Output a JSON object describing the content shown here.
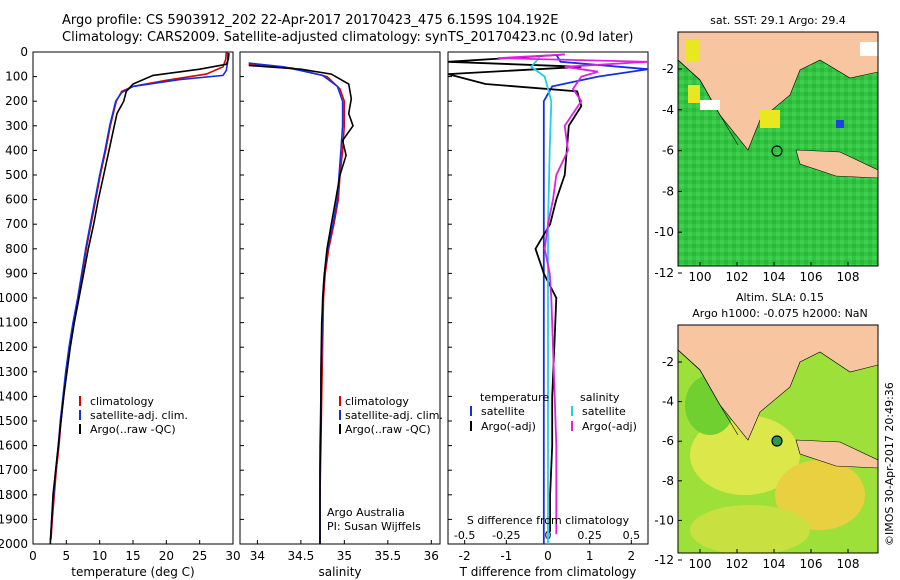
{
  "header": {
    "line1": "Argo profile: CS 5903912_202 22-Apr-2017 20170423_475 6.159S 104.192E",
    "line2": "Climatology: CARS2009. Satellite-adjusted climatology: synTS_20170423.nc (0.9d later)"
  },
  "colors": {
    "climatology": "#e00000",
    "satellite": "#1030e0",
    "argo": "#000000",
    "satellite_s": "#20d0e8",
    "argo_s": "#e020e0",
    "land": "#f7c59f",
    "sst_water": "#30c840",
    "sla_water": "#a8e030",
    "missing": "#ffffff"
  },
  "chart_data": [
    {
      "type": "line",
      "name": "temperature-profile",
      "xlabel": "temperature (deg C)",
      "ylabel": "depth",
      "xlim": [
        0,
        30
      ],
      "ylim": [
        2000,
        0
      ],
      "x_ticks": [
        0,
        5,
        10,
        15,
        20,
        25,
        30
      ],
      "y_ticks": [
        0,
        100,
        200,
        300,
        400,
        500,
        600,
        700,
        800,
        900,
        1000,
        1100,
        1200,
        1300,
        1400,
        1500,
        1600,
        1700,
        1800,
        1900,
        2000
      ],
      "legend": [
        "climatology",
        "satellite-adj. clim.",
        "Argo(..raw -QC)"
      ],
      "series": [
        {
          "name": "climatology",
          "points": [
            [
              29.0,
              0
            ],
            [
              28.9,
              30
            ],
            [
              28.5,
              60
            ],
            [
              26,
              90
            ],
            [
              20,
              115
            ],
            [
              15,
              140
            ],
            [
              13.3,
              160
            ],
            [
              12.5,
              200
            ],
            [
              11.6,
              300
            ],
            [
              10.9,
              400
            ],
            [
              10.1,
              500
            ],
            [
              9.4,
              600
            ],
            [
              8.7,
              700
            ],
            [
              8.0,
              800
            ],
            [
              7.4,
              900
            ],
            [
              6.8,
              1000
            ],
            [
              6.1,
              1100
            ],
            [
              5.5,
              1200
            ],
            [
              5.0,
              1300
            ],
            [
              4.6,
              1400
            ],
            [
              4.2,
              1500
            ],
            [
              3.9,
              1600
            ],
            [
              3.5,
              1700
            ],
            [
              3.2,
              1800
            ],
            [
              2.9,
              1900
            ],
            [
              2.7,
              1980
            ]
          ]
        },
        {
          "name": "satellite-adj. clim.",
          "points": [
            [
              29.2,
              0
            ],
            [
              29.2,
              40
            ],
            [
              29.0,
              75
            ],
            [
              28.5,
              95
            ],
            [
              22,
              112
            ],
            [
              15,
              140
            ],
            [
              13.3,
              165
            ],
            [
              12.4,
              200
            ],
            [
              11.5,
              300
            ],
            [
              10.8,
              400
            ],
            [
              10.0,
              500
            ],
            [
              9.3,
              600
            ],
            [
              8.6,
              700
            ],
            [
              7.9,
              800
            ],
            [
              7.3,
              900
            ],
            [
              6.7,
              1000
            ],
            [
              6.0,
              1100
            ],
            [
              5.4,
              1200
            ],
            [
              4.9,
              1300
            ],
            [
              4.5,
              1400
            ],
            [
              4.1,
              1500
            ],
            [
              3.8,
              1600
            ],
            [
              3.4,
              1700
            ],
            [
              3.1,
              1800
            ],
            [
              2.8,
              1900
            ],
            [
              2.6,
              1990
            ]
          ]
        },
        {
          "name": "Argo(..raw -QC)",
          "points": [
            [
              29.4,
              5
            ],
            [
              29.3,
              30
            ],
            [
              29.0,
              50
            ],
            [
              25,
              70
            ],
            [
              18,
              95
            ],
            [
              15,
              130
            ],
            [
              14.0,
              160
            ],
            [
              13.6,
              200
            ],
            [
              12.6,
              250
            ],
            [
              12.2,
              300
            ],
            [
              11.4,
              400
            ],
            [
              10.6,
              500
            ],
            [
              9.8,
              600
            ],
            [
              9.1,
              700
            ],
            [
              8.3,
              800
            ],
            [
              7.6,
              900
            ],
            [
              6.9,
              1000
            ],
            [
              6.2,
              1100
            ],
            [
              5.6,
              1200
            ],
            [
              5.1,
              1300
            ],
            [
              4.6,
              1400
            ],
            [
              4.2,
              1500
            ],
            [
              3.8,
              1600
            ],
            [
              3.4,
              1700
            ],
            [
              3.0,
              1800
            ],
            [
              2.8,
              1900
            ],
            [
              2.6,
              2000
            ]
          ]
        }
      ]
    },
    {
      "type": "line",
      "name": "salinity-profile",
      "xlabel": "salinity",
      "xlim": [
        33.8,
        36.1
      ],
      "ylim": [
        2000,
        0
      ],
      "x_ticks": [
        34,
        34.5,
        35,
        35.5,
        36
      ],
      "legend": [
        "climatology",
        "satellite-adj. clim.",
        "Argo(..raw -QC)"
      ],
      "annotation": {
        "line1": "Argo Australia",
        "line2": "PI: Susan Wijffels"
      },
      "series": [
        {
          "name": "climatology",
          "points": [
            [
              33.9,
              50
            ],
            [
              34.4,
              65
            ],
            [
              34.8,
              100
            ],
            [
              34.95,
              150
            ],
            [
              35.0,
              200
            ],
            [
              35.0,
              300
            ],
            [
              34.98,
              400
            ],
            [
              34.95,
              500
            ],
            [
              34.93,
              600
            ],
            [
              34.88,
              700
            ],
            [
              34.82,
              800
            ],
            [
              34.78,
              900
            ],
            [
              34.76,
              1000
            ],
            [
              34.75,
              1200
            ],
            [
              34.74,
              1400
            ],
            [
              34.73,
              1600
            ],
            [
              34.72,
              1800
            ],
            [
              34.72,
              2000
            ]
          ]
        },
        {
          "name": "satellite-adj. clim.",
          "points": [
            [
              33.9,
              45
            ],
            [
              34.3,
              60
            ],
            [
              34.75,
              95
            ],
            [
              34.92,
              140
            ],
            [
              34.98,
              200
            ],
            [
              34.98,
              300
            ],
            [
              34.96,
              400
            ],
            [
              34.94,
              500
            ],
            [
              34.92,
              600
            ],
            [
              34.87,
              700
            ],
            [
              34.81,
              800
            ],
            [
              34.77,
              900
            ],
            [
              34.75,
              1000
            ],
            [
              34.74,
              1200
            ],
            [
              34.73,
              1400
            ],
            [
              34.72,
              1600
            ],
            [
              34.72,
              1800
            ],
            [
              34.72,
              2000
            ]
          ]
        },
        {
          "name": "Argo(..raw -QC)",
          "points": [
            [
              33.9,
              55
            ],
            [
              34.5,
              70
            ],
            [
              34.85,
              90
            ],
            [
              35.05,
              130
            ],
            [
              35.08,
              190
            ],
            [
              35.05,
              250
            ],
            [
              35.1,
              300
            ],
            [
              34.98,
              360
            ],
            [
              35.02,
              420
            ],
            [
              34.95,
              500
            ],
            [
              34.9,
              600
            ],
            [
              34.85,
              700
            ],
            [
              34.8,
              800
            ],
            [
              34.78,
              870
            ],
            [
              34.76,
              950
            ],
            [
              34.74,
              1100
            ],
            [
              34.73,
              1300
            ],
            [
              34.73,
              1500
            ],
            [
              34.72,
              1700
            ],
            [
              34.72,
              1900
            ],
            [
              34.72,
              2000
            ]
          ]
        }
      ]
    },
    {
      "type": "line",
      "name": "difference-profile",
      "xlabel": "T difference from climatology",
      "xlabel_top": "S difference from climatology",
      "xlim": [
        -2.4,
        2.4
      ],
      "ylim": [
        2000,
        0
      ],
      "x_ticks": [
        -2,
        -1.5,
        -1,
        -0.5,
        0,
        0.5,
        1,
        1.5,
        2
      ],
      "x_tick_labels": [
        "-2",
        "-1.5",
        "-1",
        "-0.5",
        "0",
        "0.5",
        "1",
        "1.5",
        "2"
      ],
      "s_ticks": [
        -0.5,
        -0.25,
        0,
        0.25,
        0.5
      ],
      "s_tick_labels": [
        "-0.5",
        "-0.25",
        "0",
        "0.25",
        "0.5"
      ],
      "legend_left": {
        "heading": "temperature",
        "items": [
          "satellite",
          "Argo(-adj)"
        ]
      },
      "legend_right": {
        "heading": "salinity",
        "items": [
          "satellite",
          "Argo(-adj)"
        ]
      },
      "series": [
        {
          "name": "T satellite",
          "points": [
            [
              0.2,
              10
            ],
            [
              0.3,
              40
            ],
            [
              2.4,
              70
            ],
            [
              1.2,
              100
            ],
            [
              0.1,
              140
            ],
            [
              -0.1,
              200
            ],
            [
              -0.1,
              400
            ],
            [
              -0.1,
              700
            ],
            [
              -0.1,
              1000
            ],
            [
              -0.1,
              1400
            ],
            [
              -0.1,
              1800
            ],
            [
              -0.1,
              2000
            ]
          ]
        },
        {
          "name": "T Argo(-adj)",
          "points": [
            [
              0.4,
              10
            ],
            [
              -2.4,
              40
            ],
            [
              0.8,
              60
            ],
            [
              -2.4,
              90
            ],
            [
              -1.5,
              130
            ],
            [
              0.7,
              160
            ],
            [
              0.8,
              220
            ],
            [
              0.5,
              300
            ],
            [
              0.45,
              400
            ],
            [
              0.4,
              500
            ],
            [
              0.2,
              600
            ],
            [
              0.05,
              700
            ],
            [
              -0.3,
              800
            ],
            [
              -0.1,
              900
            ],
            [
              0.2,
              1000
            ],
            [
              0.15,
              1200
            ],
            [
              0.1,
              1400
            ],
            [
              0.1,
              1600
            ],
            [
              0.05,
              1800
            ],
            [
              0.05,
              1950
            ]
          ]
        },
        {
          "name": "S satellite",
          "points": [
            [
              -0.05,
              20
            ],
            [
              -0.1,
              60
            ],
            [
              -0.02,
              100
            ],
            [
              0.02,
              200
            ],
            [
              0.01,
              400
            ],
            [
              0.0,
              700
            ],
            [
              0.0,
              1000
            ],
            [
              0.0,
              1400
            ],
            [
              0.0,
              1800
            ],
            [
              0.0,
              2000
            ]
          ]
        },
        {
          "name": "S Argo(-adj)",
          "points": [
            [
              0.1,
              10
            ],
            [
              -0.3,
              25
            ],
            [
              0.6,
              40
            ],
            [
              0.1,
              60
            ],
            [
              0.3,
              80
            ],
            [
              0.2,
              100
            ],
            [
              0.15,
              150
            ],
            [
              0.2,
              200
            ],
            [
              0.15,
              250
            ],
            [
              0.1,
              300
            ],
            [
              0.12,
              400
            ],
            [
              0.05,
              500
            ],
            [
              0.03,
              600
            ],
            [
              0.0,
              700
            ],
            [
              -0.02,
              800
            ],
            [
              0.01,
              900
            ],
            [
              0.02,
              1000
            ],
            [
              0.03,
              1200
            ],
            [
              0.04,
              1400
            ],
            [
              0.05,
              1600
            ],
            [
              0.05,
              1800
            ],
            [
              0.05,
              1960
            ]
          ]
        }
      ]
    }
  ],
  "maps": {
    "sst": {
      "title": "sat. SST: 29.1  Argo: 29.4",
      "x_ticks": [
        "100",
        "102",
        "104",
        "106",
        "108"
      ],
      "y_ticks": [
        "-2",
        "-4",
        "-6",
        "-8",
        "-10",
        "-12"
      ]
    },
    "sla": {
      "title_line1": "Altim. SLA: 0.15",
      "title_line2": "Argo h1000: -0.075 h2000: NaN",
      "x_ticks": [
        "100",
        "102",
        "104",
        "106",
        "108"
      ],
      "y_ticks": [
        "-2",
        "-4",
        "-6",
        "-8",
        "-10",
        "-12"
      ]
    }
  },
  "footer": {
    "credit": "©IMOS 30-Apr-2017 20:49:36"
  }
}
